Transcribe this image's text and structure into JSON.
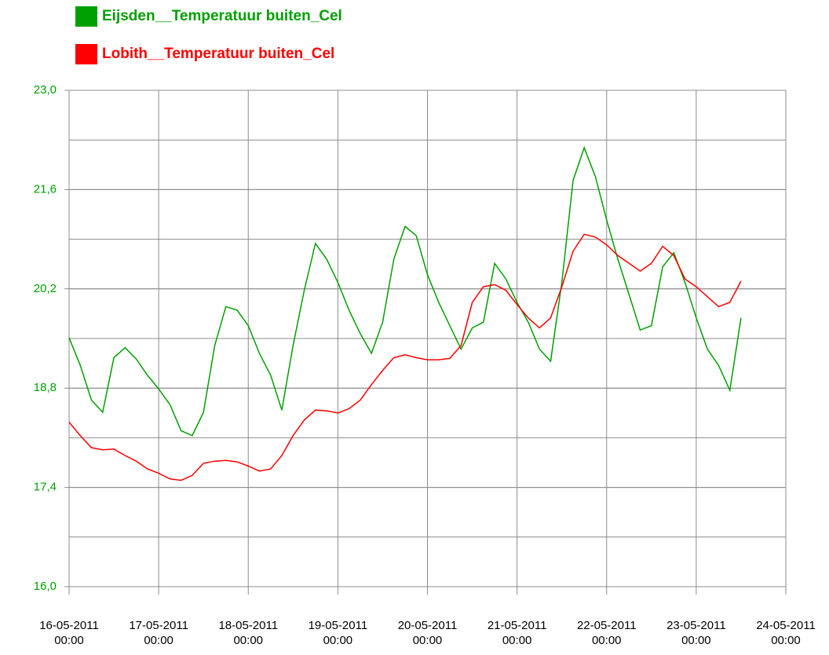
{
  "chart_data": {
    "type": "line",
    "series": [
      {
        "name": "Eijsden__Temperatuur buiten_Cel",
        "color": "#00a000",
        "values": [
          19.51,
          19.12,
          18.63,
          18.46,
          19.23,
          19.37,
          19.21,
          18.98,
          18.79,
          18.57,
          18.2,
          18.13,
          18.46,
          19.4,
          19.95,
          19.9,
          19.68,
          19.29,
          18.98,
          18.49,
          19.4,
          20.18,
          20.84,
          20.62,
          20.29,
          19.9,
          19.57,
          19.29,
          19.73,
          20.62,
          21.08,
          20.95,
          20.4,
          20.01,
          19.68,
          19.35,
          19.65,
          19.73,
          20.56,
          20.34,
          20.01,
          19.73,
          19.35,
          19.18,
          20.29,
          21.73,
          22.19,
          21.78,
          21.17,
          20.62,
          20.12,
          19.62,
          19.68,
          20.51,
          20.71,
          20.29,
          19.79,
          19.35,
          19.12,
          18.77,
          19.79
        ]
      },
      {
        "name": "Lobith__Temperatuur buiten_Cel",
        "color": "#ff0000",
        "values": [
          18.32,
          18.13,
          17.96,
          17.93,
          17.94,
          17.85,
          17.77,
          17.66,
          17.6,
          17.52,
          17.5,
          17.57,
          17.74,
          17.77,
          17.78,
          17.76,
          17.7,
          17.63,
          17.66,
          17.85,
          18.13,
          18.35,
          18.49,
          18.48,
          18.45,
          18.51,
          18.63,
          18.85,
          19.05,
          19.23,
          19.27,
          19.23,
          19.2,
          19.2,
          19.22,
          19.4,
          20.01,
          20.23,
          20.26,
          20.18,
          19.98,
          19.79,
          19.65,
          19.79,
          20.23,
          20.73,
          20.97,
          20.93,
          20.82,
          20.67,
          20.56,
          20.45,
          20.56,
          20.8,
          20.67,
          20.34,
          20.23,
          20.09,
          19.95,
          20.01,
          20.31
        ]
      }
    ],
    "x": [
      "16-05-2011 00:00",
      "16-05-2011 03:00",
      "16-05-2011 06:00",
      "16-05-2011 09:00",
      "16-05-2011 12:00",
      "16-05-2011 15:00",
      "16-05-2011 18:00",
      "16-05-2011 21:00",
      "17-05-2011 00:00",
      "17-05-2011 03:00",
      "17-05-2011 06:00",
      "17-05-2011 09:00",
      "17-05-2011 12:00",
      "17-05-2011 15:00",
      "17-05-2011 18:00",
      "17-05-2011 21:00",
      "18-05-2011 00:00",
      "18-05-2011 03:00",
      "18-05-2011 06:00",
      "18-05-2011 09:00",
      "18-05-2011 12:00",
      "18-05-2011 15:00",
      "18-05-2011 18:00",
      "18-05-2011 21:00",
      "19-05-2011 00:00",
      "19-05-2011 03:00",
      "19-05-2011 06:00",
      "19-05-2011 09:00",
      "19-05-2011 12:00",
      "19-05-2011 15:00",
      "19-05-2011 18:00",
      "19-05-2011 21:00",
      "20-05-2011 00:00",
      "20-05-2011 03:00",
      "20-05-2011 06:00",
      "20-05-2011 09:00",
      "20-05-2011 12:00",
      "20-05-2011 15:00",
      "20-05-2011 18:00",
      "20-05-2011 21:00",
      "21-05-2011 00:00",
      "21-05-2011 03:00",
      "21-05-2011 06:00",
      "21-05-2011 09:00",
      "21-05-2011 12:00",
      "21-05-2011 15:00",
      "21-05-2011 18:00",
      "21-05-2011 21:00",
      "22-05-2011 00:00",
      "22-05-2011 03:00",
      "22-05-2011 06:00",
      "22-05-2011 09:00",
      "22-05-2011 12:00",
      "22-05-2011 15:00",
      "22-05-2011 18:00",
      "22-05-2011 21:00",
      "23-05-2011 00:00",
      "23-05-2011 03:00",
      "23-05-2011 06:00",
      "23-05-2011 09:00",
      "23-05-2011 12:00"
    ],
    "xlim": [
      "16-05-2011 00:00",
      "24-05-2011 00:00"
    ],
    "xticks": [
      "16-05-2011 00:00",
      "17-05-2011 00:00",
      "18-05-2011 00:00",
      "19-05-2011 00:00",
      "20-05-2011 00:00",
      "21-05-2011 00:00",
      "22-05-2011 00:00",
      "23-05-2011 00:00",
      "24-05-2011 00:00"
    ],
    "ylim": [
      16.0,
      23.0
    ],
    "yticks": [
      {
        "value": 23.0,
        "label": "23,0"
      },
      {
        "value": 21.6,
        "label": "21,6"
      },
      {
        "value": 20.2,
        "label": "20,2"
      },
      {
        "value": 18.8,
        "label": "18,8"
      },
      {
        "value": 17.4,
        "label": "17,4"
      },
      {
        "value": 16.0,
        "label": "16,0"
      }
    ],
    "ygrid": [
      16.7,
      17.4,
      18.1,
      18.8,
      19.5,
      20.2,
      20.9,
      21.6,
      22.3
    ],
    "ytick_color": "#00a000",
    "grid": true
  }
}
